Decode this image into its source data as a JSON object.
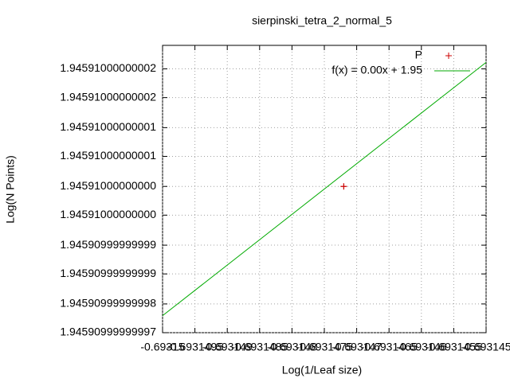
{
  "chart_data": {
    "type": "scatter",
    "title": "sierpinski_tetra_2_normal_5",
    "x_label": "Log(1/Leaf size)",
    "y_label": "Log(N Points)",
    "grid": true,
    "legend": "top-right",
    "xlim": [
      -0.69315,
      -0.693145
    ],
    "xticks": [
      {
        "value": -0.69315,
        "label": "-0.69315"
      },
      {
        "value": -0.6931495,
        "label": "-0.6931495"
      },
      {
        "value": -0.693149,
        "label": "-0.693149"
      },
      {
        "value": -0.6931485,
        "label": "-0.6931485"
      },
      {
        "value": -0.693148,
        "label": "-0.693148"
      },
      {
        "value": -0.6931475,
        "label": "-0.6931475"
      },
      {
        "value": -0.693147,
        "label": "-0.693147"
      },
      {
        "value": -0.6931465,
        "label": "-0.6931465"
      },
      {
        "value": -0.693146,
        "label": "-0.693146"
      },
      {
        "value": -0.6931455,
        "label": "-0.6931455"
      },
      {
        "value": -0.693145,
        "label": "-0.693145"
      }
    ],
    "ylim": [
      1.94590999999998,
      1.945910000000029
    ],
    "yticks": [
      {
        "value": 1.94590999999998,
        "label": "1.94590999999997"
      },
      {
        "value": 1.945909999999985,
        "label": "1.94590999999998"
      },
      {
        "value": 1.94590999999999,
        "label": "1.94590999999999"
      },
      {
        "value": 1.945909999999995,
        "label": "1.94590999999999"
      },
      {
        "value": 1.94591,
        "label": "1.94591000000000"
      },
      {
        "value": 1.945910000000005,
        "label": "1.94591000000000"
      },
      {
        "value": 1.94591000000001,
        "label": "1.94591000000001"
      },
      {
        "value": 1.945910000000015,
        "label": "1.94591000000001"
      },
      {
        "value": 1.94591000000002,
        "label": "1.94591000000002"
      },
      {
        "value": 1.945910000000025,
        "label": "1.94591000000002"
      }
    ],
    "series": [
      {
        "name": "P",
        "color": "#cc0000",
        "x": [
          -0.6931472
        ],
        "values": [
          1.945910000000005
        ]
      },
      {
        "name": "f(x) = 0.00x + 1.95",
        "color": "#00aa00",
        "x": [
          -0.69315,
          -0.693145
        ],
        "values": [
          1.945909999999983,
          1.945910000000026
        ]
      }
    ]
  }
}
